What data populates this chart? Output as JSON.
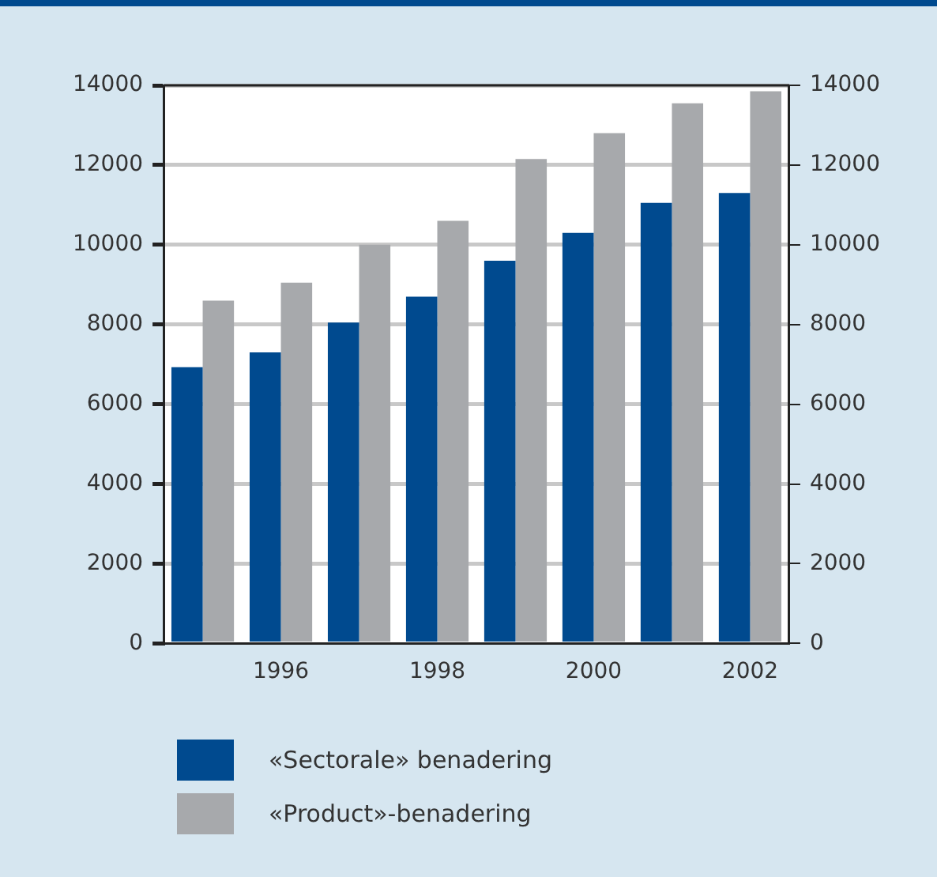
{
  "chart_data": {
    "type": "bar",
    "categories": [
      null,
      "1996",
      null,
      "1998",
      null,
      "2000",
      null,
      "2002"
    ],
    "series": [
      {
        "name": "«Sectorale» benadering",
        "color": "#004a8f",
        "values": [
          6930,
          7300,
          8050,
          8700,
          9600,
          10300,
          11050,
          11300
        ]
      },
      {
        "name": "«Product»-benadering",
        "color": "#a7a9ac",
        "values": [
          8600,
          9050,
          10000,
          10600,
          12150,
          12800,
          13550,
          13850
        ]
      }
    ],
    "ylim": [
      0,
      14000
    ],
    "yticks": [
      0,
      2000,
      4000,
      6000,
      8000,
      10000,
      12000,
      14000
    ],
    "y2lim": [
      0,
      14000
    ],
    "y2ticks": [
      0,
      2000,
      4000,
      6000,
      8000,
      10000,
      12000,
      14000
    ],
    "grid": "y",
    "legend": "bottom"
  }
}
